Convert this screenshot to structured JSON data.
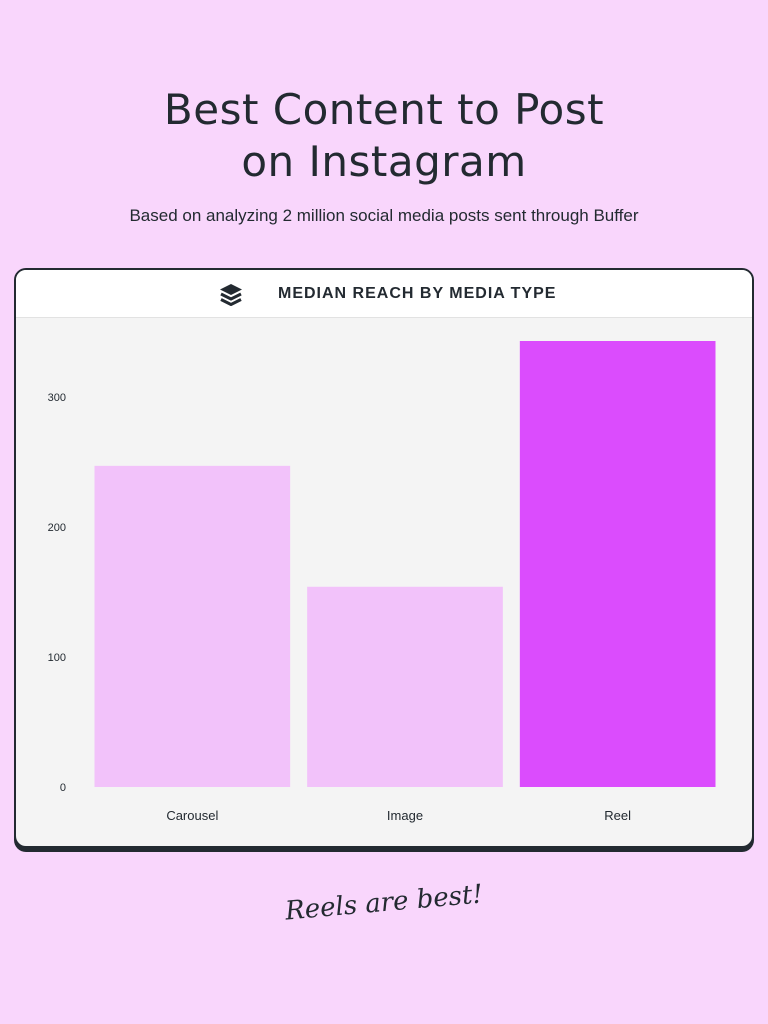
{
  "header": {
    "title_line1": "Best Content to Post",
    "title_line2": "on Instagram",
    "subtitle": "Based on analyzing 2 million social media posts sent through Buffer"
  },
  "card": {
    "title": "MEDIAN REACH BY MEDIA TYPE",
    "logo_icon": "buffer-stack-icon"
  },
  "tagline": "Reels are best!",
  "colors": {
    "background": "#f9d6fc",
    "bar_light": "#f2c2fa",
    "bar_highlight": "#db4cfd",
    "text_dark": "#232a31"
  },
  "chart_data": {
    "type": "bar",
    "title": "MEDIAN REACH BY MEDIA TYPE",
    "categories": [
      "Carousel",
      "Image",
      "Reel"
    ],
    "values": [
      247,
      154,
      343
    ],
    "highlight": "Reel",
    "xlabel": "",
    "ylabel": "",
    "yticks": [
      0,
      100,
      200,
      300
    ],
    "ylim": [
      0,
      343
    ],
    "grid": false,
    "legend": "none"
  }
}
